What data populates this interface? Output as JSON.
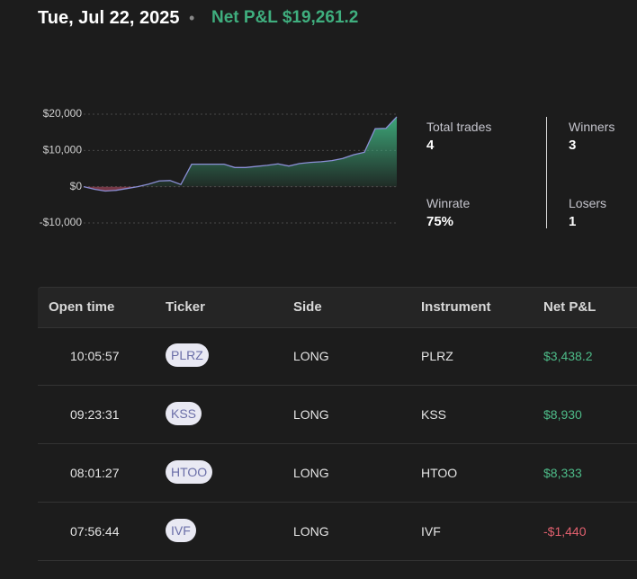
{
  "header": {
    "date": "Tue, Jul 22, 2025",
    "separator": "•",
    "net_pnl": "Net P&L $19,261.2"
  },
  "chart_data": {
    "type": "area",
    "categories": [
      null,
      null,
      null,
      null,
      null,
      null,
      null,
      null,
      null,
      null,
      null,
      null,
      null,
      null,
      null,
      null,
      null,
      null,
      null,
      null,
      null,
      null,
      null,
      null,
      null,
      null,
      null,
      null,
      null,
      null
    ],
    "values": [
      0,
      -700,
      -1200,
      -1000,
      -500,
      0,
      700,
      1600,
      1700,
      600,
      6200,
      6200,
      6200,
      6200,
      5300,
      5300,
      5600,
      5900,
      6300,
      5700,
      6400,
      6700,
      6900,
      7200,
      7800,
      8800,
      9500,
      16000,
      16100,
      19261.2
    ],
    "color": "#8b8fd6",
    "ylim": [
      -10000,
      20000
    ],
    "yticks": [
      {
        "value": 20000,
        "label": "$20,000"
      },
      {
        "value": 10000,
        "label": "$10,000"
      },
      {
        "value": 0,
        "label": "$0"
      },
      {
        "value": -10000,
        "label": "-$10,000"
      }
    ],
    "grid": true
  },
  "stats": [
    {
      "label": "Total trades",
      "value": "4"
    },
    {
      "label": "Winners",
      "value": "3"
    },
    {
      "label": "Winrate",
      "value": "75%"
    },
    {
      "label": "Losers",
      "value": "1"
    }
  ],
  "table": {
    "columns": [
      "Open time",
      "Ticker",
      "Side",
      "Instrument",
      "Net P&L"
    ],
    "rows": [
      [
        "10:05:57",
        "PLRZ",
        "LONG",
        "PLRZ",
        "$3,438.2"
      ],
      [
        "09:23:31",
        "KSS",
        "LONG",
        "KSS",
        "$8,930"
      ],
      [
        "08:01:27",
        "HTOO",
        "LONG",
        "HTOO",
        "$8,333"
      ],
      [
        "07:56:44",
        "IVF",
        "LONG",
        "IVF",
        "-$1,440"
      ]
    ]
  }
}
